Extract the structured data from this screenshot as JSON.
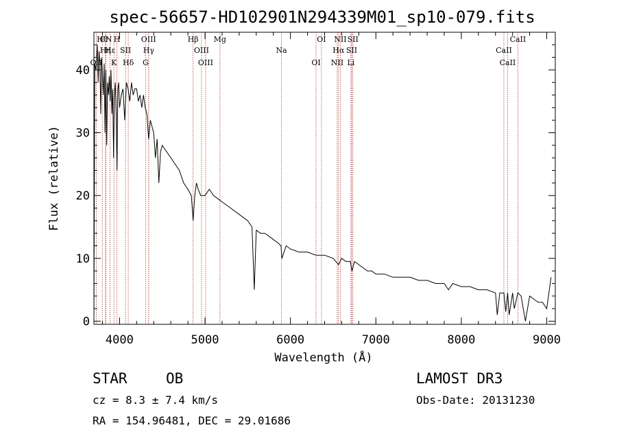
{
  "chart_data": {
    "type": "line",
    "title": "spec-56657-HD102901N294339M01_sp10-079.fits",
    "xlabel": "Wavelength (Å)",
    "ylabel": "Flux (relative)",
    "xlim": [
      3700,
      9100
    ],
    "ylim": [
      -0.5,
      46
    ],
    "x_ticks": [
      4000,
      5000,
      6000,
      7000,
      8000,
      9000
    ],
    "y_ticks": [
      0,
      10,
      20,
      30,
      40
    ],
    "series": [
      {
        "name": "flux",
        "x": [
          3700,
          3710,
          3725,
          3740,
          3750,
          3760,
          3770,
          3780,
          3790,
          3800,
          3810,
          3820,
          3830,
          3840,
          3850,
          3860,
          3870,
          3880,
          3890,
          3900,
          3910,
          3920,
          3930,
          3940,
          3950,
          3960,
          3970,
          3980,
          3990,
          4000,
          4020,
          4040,
          4060,
          4080,
          4100,
          4120,
          4140,
          4160,
          4180,
          4200,
          4220,
          4240,
          4260,
          4280,
          4300,
          4320,
          4340,
          4360,
          4380,
          4400,
          4420,
          4440,
          4460,
          4480,
          4500,
          4550,
          4600,
          4650,
          4700,
          4750,
          4800,
          4840,
          4861,
          4880,
          4900,
          4920,
          4950,
          5000,
          5050,
          5100,
          5150,
          5200,
          5300,
          5400,
          5500,
          5550,
          5577,
          5600,
          5650,
          5700,
          5750,
          5800,
          5850,
          5890,
          5900,
          5950,
          6000,
          6100,
          6200,
          6300,
          6400,
          6500,
          6563,
          6600,
          6650,
          6700,
          6720,
          6750,
          6800,
          6850,
          6900,
          6950,
          7000,
          7100,
          7200,
          7300,
          7400,
          7500,
          7600,
          7700,
          7800,
          7850,
          7900,
          8000,
          8100,
          8200,
          8300,
          8400,
          8420,
          8450,
          8498,
          8520,
          8542,
          8560,
          8600,
          8620,
          8662,
          8700,
          8750,
          8800,
          8850,
          8900,
          8950,
          9000,
          9050
        ],
        "values": [
          0,
          41,
          40,
          44,
          38,
          43,
          41,
          33,
          42,
          39,
          36,
          41,
          30,
          40,
          28,
          38,
          36,
          39,
          35,
          40,
          33,
          37,
          26,
          36,
          38,
          33,
          24,
          37,
          38,
          34,
          36,
          37,
          32,
          38,
          37,
          35,
          38,
          36,
          37,
          37,
          35,
          36,
          34,
          36,
          34,
          33,
          29,
          32,
          31,
          30,
          26,
          29,
          22,
          27,
          28,
          27,
          26,
          25,
          24,
          22,
          21,
          20,
          16,
          20,
          22,
          21,
          20,
          20,
          21,
          20,
          19.5,
          19,
          18,
          17,
          16,
          15,
          5,
          14.5,
          14,
          14,
          13.5,
          13,
          12.5,
          12,
          10,
          12,
          11.5,
          11,
          11,
          10.5,
          10.5,
          10,
          9,
          10,
          9.5,
          9.5,
          8,
          9.5,
          9,
          8.5,
          8,
          8,
          7.5,
          7.5,
          7,
          7,
          7,
          6.5,
          6.5,
          6,
          6,
          5,
          6,
          5.5,
          5.5,
          5,
          5,
          4.5,
          1,
          4.5,
          4.5,
          1.5,
          4.5,
          1,
          4.5,
          2,
          4.5,
          4,
          0,
          4,
          3.5,
          3,
          3,
          2,
          7
        ]
      }
    ],
    "lines": [
      {
        "name": "Hθ",
        "wave": 3798
      },
      {
        "name": "Hη",
        "wave": 3835
      },
      {
        "name": "OII",
        "wave": 3727
      },
      {
        "name": "CN",
        "wave": 3840
      },
      {
        "name": "Hε",
        "wave": 3889
      },
      {
        "name": "K",
        "wave": 3934
      },
      {
        "name": "H",
        "wave": 3969
      },
      {
        "name": "SII",
        "wave": 4070
      },
      {
        "name": "Hδ",
        "wave": 4102
      },
      {
        "name": "OIII",
        "wave": 4340
      },
      {
        "name": "Hγ",
        "wave": 4341
      },
      {
        "name": "G",
        "wave": 4305
      },
      {
        "name": "Hβ",
        "wave": 4861
      },
      {
        "name": "OIII",
        "wave": 4959
      },
      {
        "name": "OIII",
        "wave": 5007
      },
      {
        "name": "Mg",
        "wave": 5175
      },
      {
        "name": "Na",
        "wave": 5894
      },
      {
        "name": "OI",
        "wave": 6300
      },
      {
        "name": "OI",
        "wave": 6363
      },
      {
        "name": "Hα",
        "wave": 6563
      },
      {
        "name": "NII",
        "wave": 6548
      },
      {
        "name": "NII",
        "wave": 6584
      },
      {
        "name": "SII",
        "wave": 6717
      },
      {
        "name": "Li",
        "wave": 6708
      },
      {
        "name": "SII",
        "wave": 6731
      },
      {
        "name": "CaII",
        "wave": 8498
      },
      {
        "name": "CaII",
        "wave": 8542
      },
      {
        "name": "CaII",
        "wave": 8662
      }
    ],
    "line_color": "#b03a2e"
  },
  "info": {
    "class": "STAR",
    "subclass": "OB",
    "survey": "LAMOST DR3",
    "cz": "cz = 8.3 ± 7.4 km/s",
    "obs_date": "Obs-Date: 20131230",
    "radec": "RA = 154.96481, DEC =  29.01686"
  }
}
